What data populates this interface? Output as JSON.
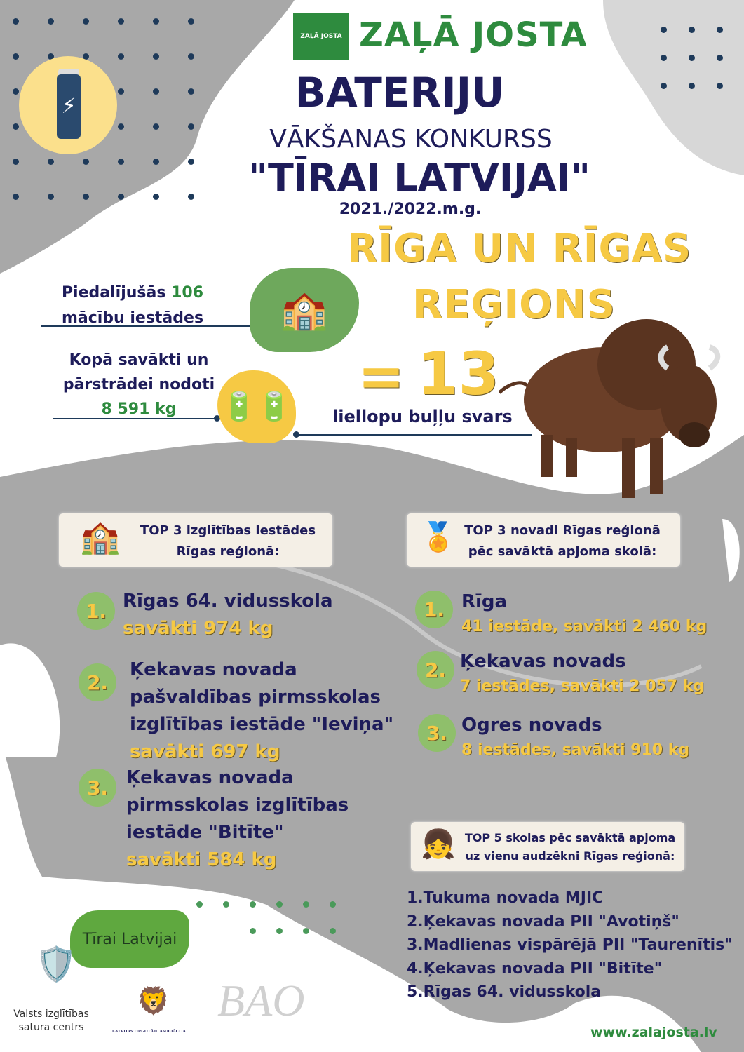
{
  "header": {
    "brand": "ZAĻĀ JOSTA",
    "logo_text": "ZAĻĀ JOSTA",
    "title": "BATERIJU",
    "subtitle": "VĀKŠANAS KONKURSS",
    "campaign": "\"TĪRAI LATVIJAI\"",
    "year": "2021./2022.m.g.",
    "region_line1": "RĪGA UN RĪGAS",
    "region_line2": "REĢIONS"
  },
  "stats": {
    "participants_prefix": "Piedalījušās",
    "participants_count": "106",
    "participants_suffix": "mācību iestādes",
    "collected_line1": "Kopā savākti un",
    "collected_line2": "pārstrādei nodoti",
    "collected_amount": "8 591 kg",
    "equals": "=",
    "equivalent_count": "13",
    "equivalent_label": "liellopu buļļu svars"
  },
  "top3_schools": {
    "heading_line1": "TOP 3 izglītības iestādes",
    "heading_line2": "Rīgas reģionā:",
    "items": [
      {
        "rank": "1.",
        "name": "Rīgas 64. vidusskola",
        "amount": "savākti  974 kg"
      },
      {
        "rank": "2.",
        "name": "Ķekavas novada pašvaldības pirmsskolas izglītības iestāde \"Ieviņa\"",
        "amount": "savākti  697 kg"
      },
      {
        "rank": "3.",
        "name": "Ķekavas novada pirmsskolas izglītības iestāde \"Bitīte\"",
        "amount": "savākti 584 kg"
      }
    ]
  },
  "top3_regions": {
    "heading_line1": "TOP 3 novadi Rīgas reģionā",
    "heading_line2": "pēc savāktā apjoma skolā:",
    "items": [
      {
        "rank": "1.",
        "name": "Rīga",
        "detail": "41 iestāde, savākti  2 460 kg"
      },
      {
        "rank": "2.",
        "name": "Ķekavas novads",
        "detail": "7 iestādes, savākti  2 057 kg"
      },
      {
        "rank": "3.",
        "name": "Ogres novads",
        "detail": "8 iestādes, savākti  910 kg"
      }
    ]
  },
  "top5": {
    "heading_line1": "TOP 5 skolas pēc savāktā apjoma",
    "heading_line2": "uz vienu audzēkni Rīgas reģionā:",
    "items": [
      {
        "rank": "1.",
        "name": "Tukuma novada MJIC"
      },
      {
        "rank": "2.",
        "name": "Ķekavas novada PII \"Avotiņš\""
      },
      {
        "rank": "3.",
        "name": "Madlienas vispārējā PII \"Taurenītis\""
      },
      {
        "rank": "4.",
        "name": "Ķekavas novada PII \"Bitīte\""
      },
      {
        "rank": "5.",
        "name": "Rīgas 64. vidusskola"
      }
    ]
  },
  "footer": {
    "tirai_latvijai": "Tīrai Latvijai",
    "visc_line1": "Valsts izglītības",
    "visc_line2": "satura centrs",
    "lta": "LATVIJAS TIRGOTĀJU ASOCIĀCIJA",
    "bao": "BAO",
    "website": "www.zalajosta.lv"
  },
  "colors": {
    "navy": "#1e1c5a",
    "yellow": "#f6c944",
    "green": "#2e8b3e",
    "gray": "#a8a8a8",
    "circle_green": "#8fbf6b"
  }
}
